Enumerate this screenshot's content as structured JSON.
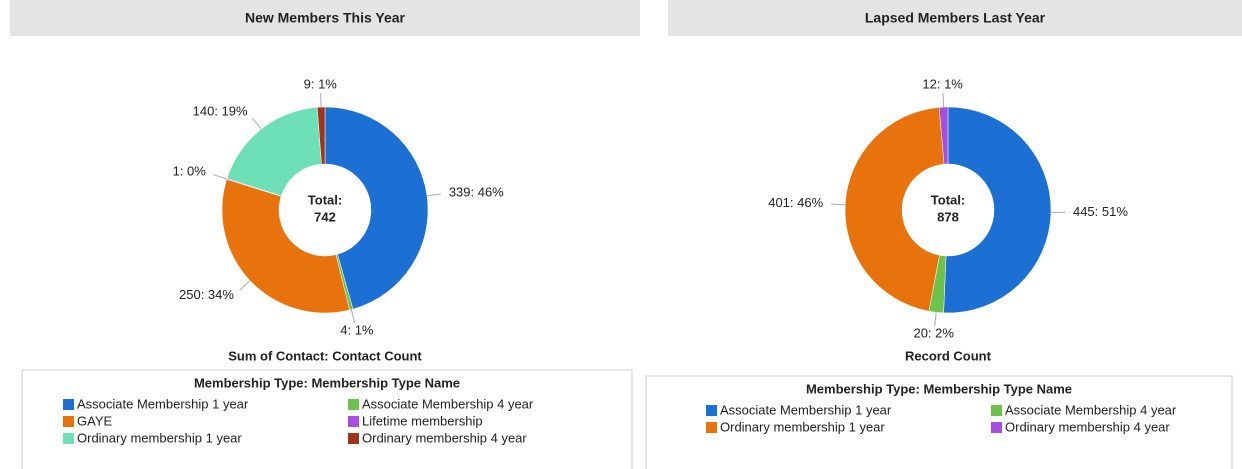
{
  "chart_data": [
    {
      "type": "donut",
      "title": "New Members This Year",
      "total_label": "Total:",
      "total": 742,
      "x_label": "Sum of Contact: Contact Count",
      "legend_title": "Membership Type: Membership Type Name",
      "categories": [
        "Associate Membership 1 year",
        "Associate Membership 4 year",
        "GAYE",
        "Lifetime membership",
        "Ordinary membership 1 year",
        "Ordinary membership 4 year"
      ],
      "values": [
        339,
        4,
        250,
        1,
        140,
        9
      ],
      "value_labels": [
        "339: 46%",
        "4: 1%",
        "250: 34%",
        "1: 0%",
        "140: 19%",
        "9: 1%"
      ],
      "colors": [
        "#1c6fd3",
        "#6cc24a",
        "#e8730c",
        "#a64ee0",
        "#6de0b8",
        "#a0351a"
      ]
    },
    {
      "type": "donut",
      "title": "Lapsed Members Last Year",
      "total_label": "Total:",
      "total": 878,
      "x_label": "Record Count",
      "legend_title": "Membership Type: Membership Type Name",
      "categories": [
        "Associate Membership 1 year",
        "Associate Membership 4 year",
        "Ordinary membership 1 year",
        "Ordinary membership 4 year"
      ],
      "values": [
        445,
        20,
        401,
        12
      ],
      "value_labels": [
        "445: 51%",
        "20: 2%",
        "401: 46%",
        "12: 1%"
      ],
      "colors": [
        "#1c6fd3",
        "#6cc24a",
        "#e8730c",
        "#a64ee0"
      ]
    }
  ]
}
